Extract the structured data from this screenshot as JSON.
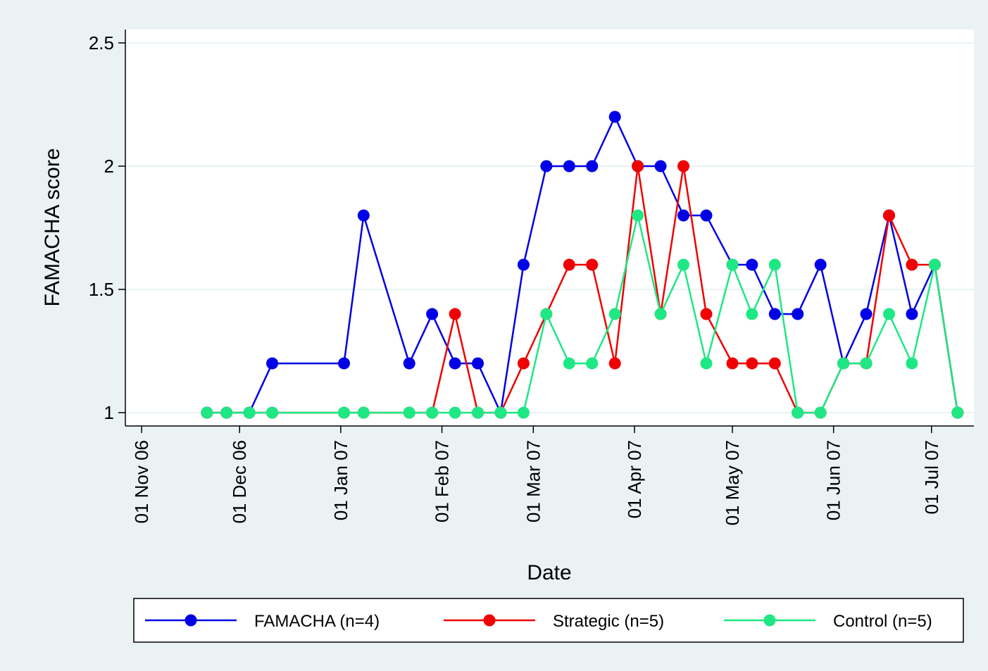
{
  "chart_data": {
    "type": "line",
    "x_label": "Date",
    "y_label": "FAMACHA score",
    "x": [
      "2006-11-21",
      "2006-11-27",
      "2006-12-04",
      "2006-12-11",
      "2007-01-02",
      "2007-01-08",
      "2007-01-22",
      "2007-01-29",
      "2007-02-05",
      "2007-02-12",
      "2007-02-19",
      "2007-02-26",
      "2007-03-05",
      "2007-03-12",
      "2007-03-19",
      "2007-03-26",
      "2007-04-02",
      "2007-04-09",
      "2007-04-16",
      "2007-04-23",
      "2007-05-01",
      "2007-05-07",
      "2007-05-14",
      "2007-05-21",
      "2007-05-28",
      "2007-06-04",
      "2007-06-11",
      "2007-06-18",
      "2007-06-25",
      "2007-07-02",
      "2007-07-09"
    ],
    "series": [
      {
        "name": "FAMACHA (n=4)",
        "color": "#0000e6",
        "values": [
          1,
          1,
          1,
          1.2,
          1.2,
          1.8,
          1.2,
          1.4,
          1.2,
          1.2,
          1,
          1.6,
          2,
          2,
          2,
          2.2,
          2,
          2,
          1.8,
          1.8,
          1.6,
          1.6,
          1.4,
          1.4,
          1.6,
          1.2,
          1.4,
          1.8,
          1.4,
          1.6,
          1
        ]
      },
      {
        "name": "Strategic (n=5)",
        "color": "#f00000",
        "values": [
          1,
          1,
          1,
          1,
          1,
          1,
          1,
          1,
          1.4,
          1,
          1,
          1.2,
          1.4,
          1.6,
          1.6,
          1.2,
          2,
          1.4,
          2,
          1.4,
          1.2,
          1.2,
          1.2,
          1,
          1,
          1.2,
          1.2,
          1.8,
          1.6,
          1.6,
          1
        ]
      },
      {
        "name": "Control (n=5)",
        "color": "#1ee884",
        "values": [
          1,
          1,
          1,
          1,
          1,
          1,
          1,
          1,
          1,
          1,
          1,
          1,
          1.4,
          1.2,
          1.2,
          1.4,
          1.8,
          1.4,
          1.6,
          1.2,
          1.6,
          1.4,
          1.6,
          1,
          1,
          1.2,
          1.2,
          1.4,
          1.2,
          1.6,
          1
        ]
      }
    ],
    "xlim": [
      "2006-10-27",
      "2007-07-14"
    ],
    "xticks": [
      {
        "value": "2006-11-01",
        "label": "01 Nov 06"
      },
      {
        "value": "2006-12-01",
        "label": "01 Dec 06"
      },
      {
        "value": "2007-01-01",
        "label": "01 Jan 07"
      },
      {
        "value": "2007-02-01",
        "label": "01 Feb 07"
      },
      {
        "value": "2007-03-01",
        "label": "01 Mar 07"
      },
      {
        "value": "2007-04-01",
        "label": "01 Apr 07"
      },
      {
        "value": "2007-05-01",
        "label": "01 May 07"
      },
      {
        "value": "2007-06-01",
        "label": "01 Jun 07"
      },
      {
        "value": "2007-07-01",
        "label": "01 Jul 07"
      }
    ],
    "ylim": [
      0.946,
      2.554
    ],
    "yticks": [
      1,
      1.5,
      2,
      2.5
    ],
    "grid": true,
    "legend": "bottom"
  }
}
